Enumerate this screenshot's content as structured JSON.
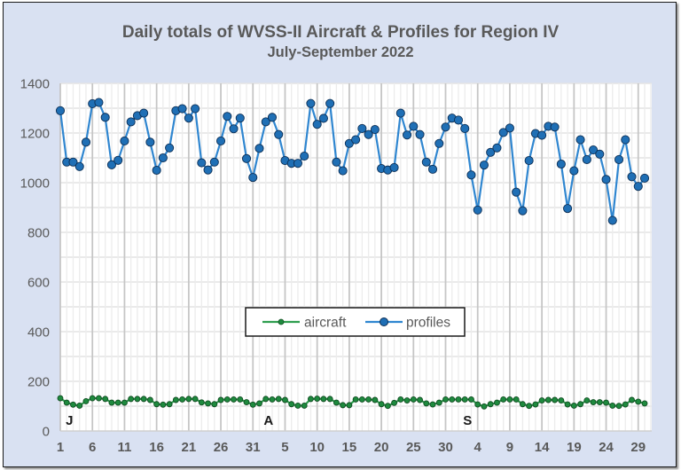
{
  "chart_data": {
    "type": "line",
    "title": "Daily totals of WVSS-II Aircraft & Profiles for Region IV",
    "subtitle": "July-September 2022",
    "xlabel": "",
    "ylabel": "",
    "ylim": [
      0,
      1400
    ],
    "yticks": [
      0,
      200,
      400,
      600,
      800,
      1000,
      1200,
      1400
    ],
    "grid": true,
    "legend_position": "center",
    "x_tick_labels": [
      "1",
      "6",
      "11",
      "16",
      "21",
      "26",
      "31",
      "5",
      "10",
      "15",
      "20",
      "25",
      "30",
      "4",
      "9",
      "14",
      "19",
      "24",
      "29"
    ],
    "x_tick_every_n_days": 5,
    "month_markers": [
      {
        "label": "J",
        "day_index": 1
      },
      {
        "label": "A",
        "day_index": 32
      },
      {
        "label": "S",
        "day_index": 63
      }
    ],
    "x": [
      "Jul 1",
      "Jul 2",
      "Jul 3",
      "Jul 4",
      "Jul 5",
      "Jul 6",
      "Jul 7",
      "Jul 8",
      "Jul 9",
      "Jul 10",
      "Jul 11",
      "Jul 12",
      "Jul 13",
      "Jul 14",
      "Jul 15",
      "Jul 16",
      "Jul 17",
      "Jul 18",
      "Jul 19",
      "Jul 20",
      "Jul 21",
      "Jul 22",
      "Jul 23",
      "Jul 24",
      "Jul 25",
      "Jul 26",
      "Jul 27",
      "Jul 28",
      "Jul 29",
      "Jul 30",
      "Jul 31",
      "Aug 1",
      "Aug 2",
      "Aug 3",
      "Aug 4",
      "Aug 5",
      "Aug 6",
      "Aug 7",
      "Aug 8",
      "Aug 9",
      "Aug 10",
      "Aug 11",
      "Aug 12",
      "Aug 13",
      "Aug 14",
      "Aug 15",
      "Aug 16",
      "Aug 17",
      "Aug 18",
      "Aug 19",
      "Aug 20",
      "Aug 21",
      "Aug 22",
      "Aug 23",
      "Aug 24",
      "Aug 25",
      "Aug 26",
      "Aug 27",
      "Aug 28",
      "Aug 29",
      "Aug 30",
      "Aug 31",
      "Sep 1",
      "Sep 2",
      "Sep 3",
      "Sep 4",
      "Sep 5",
      "Sep 6",
      "Sep 7",
      "Sep 8",
      "Sep 9",
      "Sep 10",
      "Sep 11",
      "Sep 12",
      "Sep 13",
      "Sep 14",
      "Sep 15",
      "Sep 16",
      "Sep 17",
      "Sep 18",
      "Sep 19",
      "Sep 20",
      "Sep 21",
      "Sep 22",
      "Sep 23",
      "Sep 24",
      "Sep 25",
      "Sep 26",
      "Sep 27",
      "Sep 28",
      "Sep 29",
      "Sep 30"
    ],
    "series": [
      {
        "name": "aircraft",
        "color": "#2e9e4e",
        "marker_color": "#1e8a3e",
        "values": [
          132,
          114,
          106,
          102,
          120,
          132,
          132,
          129,
          114,
          114,
          114,
          129,
          129,
          129,
          125,
          108,
          106,
          108,
          125,
          127,
          129,
          129,
          115,
          111,
          108,
          125,
          127,
          127,
          127,
          116,
          106,
          111,
          129,
          127,
          129,
          125,
          108,
          102,
          102,
          129,
          130,
          129,
          129,
          114,
          104,
          104,
          127,
          127,
          127,
          125,
          108,
          101,
          113,
          127,
          123,
          127,
          125,
          111,
          107,
          114,
          127,
          127,
          127,
          127,
          127,
          107,
          99,
          108,
          114,
          127,
          127,
          127,
          108,
          101,
          107,
          123,
          125,
          125,
          123,
          107,
          102,
          108,
          123,
          116,
          116,
          114,
          102,
          101,
          107,
          125,
          118,
          111
        ]
      },
      {
        "name": "profiles",
        "color": "#2f86d0",
        "marker_color": "#1f6fb5",
        "values": [
          1290,
          1083,
          1083,
          1065,
          1163,
          1318,
          1323,
          1263,
          1072,
          1090,
          1168,
          1245,
          1270,
          1280,
          1163,
          1050,
          1100,
          1140,
          1290,
          1298,
          1260,
          1298,
          1080,
          1051,
          1083,
          1168,
          1267,
          1217,
          1260,
          1097,
          1021,
          1138,
          1245,
          1263,
          1194,
          1089,
          1078,
          1078,
          1107,
          1319,
          1235,
          1259,
          1319,
          1083,
          1048,
          1158,
          1173,
          1218,
          1194,
          1214,
          1057,
          1051,
          1061,
          1280,
          1192,
          1227,
          1194,
          1083,
          1054,
          1158,
          1224,
          1260,
          1252,
          1218,
          1031,
          890,
          1071,
          1122,
          1140,
          1202,
          1220,
          962,
          887,
          1089,
          1198,
          1191,
          1227,
          1224,
          1075,
          896,
          1048,
          1173,
          1093,
          1132,
          1115,
          1013,
          848,
          1093,
          1173,
          1024,
          985,
          1018
        ]
      }
    ]
  }
}
